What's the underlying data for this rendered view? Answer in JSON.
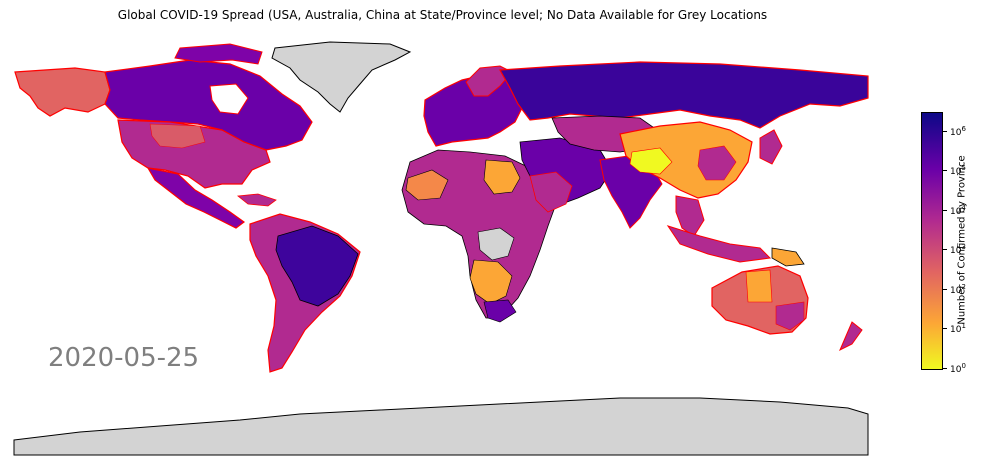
{
  "title": "Global COVID-19 Spread (USA, Australia, China at State/Province level; No Data Available for Grey Locations",
  "date": "2020-05-25",
  "colorbar": {
    "label": "Number of Confirmed by Province",
    "scale": "log",
    "ticks": [
      {
        "base": "10",
        "exp": "0",
        "value": 1
      },
      {
        "base": "10",
        "exp": "1",
        "value": 10
      },
      {
        "base": "10",
        "exp": "2",
        "value": 100
      },
      {
        "base": "10",
        "exp": "3",
        "value": 1000
      },
      {
        "base": "10",
        "exp": "4",
        "value": 10000
      },
      {
        "base": "10",
        "exp": "5",
        "value": 100000
      },
      {
        "base": "10",
        "exp": "6",
        "value": 1000000
      }
    ],
    "range": [
      1,
      3000000
    ]
  },
  "colors": {
    "no_data": "#d3d3d3",
    "highlight_border": "#ff0000",
    "country_border": "#000000",
    "scale_low": "#f0f921",
    "scale_high": "#0d0887"
  },
  "regions": [
    {
      "name": "usa",
      "level": "state",
      "shade": "#b12a90"
    },
    {
      "name": "canada",
      "shade": "#6a00a8"
    },
    {
      "name": "alaska",
      "shade": "#e16462"
    },
    {
      "name": "greenland",
      "shade": "#d3d3d3"
    },
    {
      "name": "mexico",
      "shade": "#7e03a8"
    },
    {
      "name": "brazil",
      "shade": "#3e049c"
    },
    {
      "name": "russia",
      "shade": "#3a049a"
    },
    {
      "name": "china",
      "level": "province",
      "shade": "#fca636"
    },
    {
      "name": "india",
      "shade": "#6a00a8"
    },
    {
      "name": "australia",
      "level": "state",
      "shade": "#e16462"
    },
    {
      "name": "antarctica",
      "shade": "#d3d3d3"
    }
  ]
}
